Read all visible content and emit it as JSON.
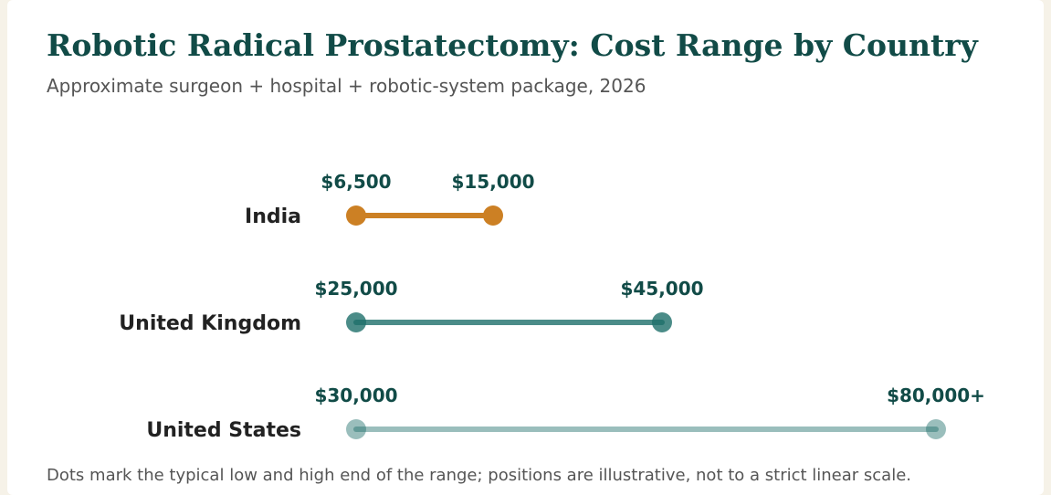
{
  "title": "Robotic Radical Prostatectomy: Cost Range by Country",
  "subtitle": "Approximate surgeon + hospital + robotic-system package, 2026",
  "footnote": "Dots mark the typical low and high end of the range; positions are illustrative, not to a strict linear scale.",
  "chart_data": {
    "type": "dumbbell",
    "title": "Robotic Radical Prostatectomy: Cost Range by Country",
    "subtitle": "Approximate surgeon + hospital + robotic-system package, 2026",
    "xlabel": "",
    "ylabel": "",
    "grid": false,
    "categories": [
      "India",
      "United Kingdom",
      "United States"
    ],
    "series": [
      {
        "country": "India",
        "low": 6500,
        "high": 15000,
        "low_label": "$6,500",
        "high_label": "$15,000",
        "color": "#cc8024",
        "opacity": 1.0
      },
      {
        "country": "United Kingdom",
        "low": 25000,
        "high": 45000,
        "low_label": "$25,000",
        "high_label": "$45,000",
        "color": "#1e6f6a",
        "opacity": 0.8
      },
      {
        "country": "United States",
        "low": 30000,
        "high": 80000,
        "low_label": "$30,000",
        "high_label": "$80,000+",
        "color": "#1e6f6a",
        "opacity": 0.45
      }
    ]
  }
}
